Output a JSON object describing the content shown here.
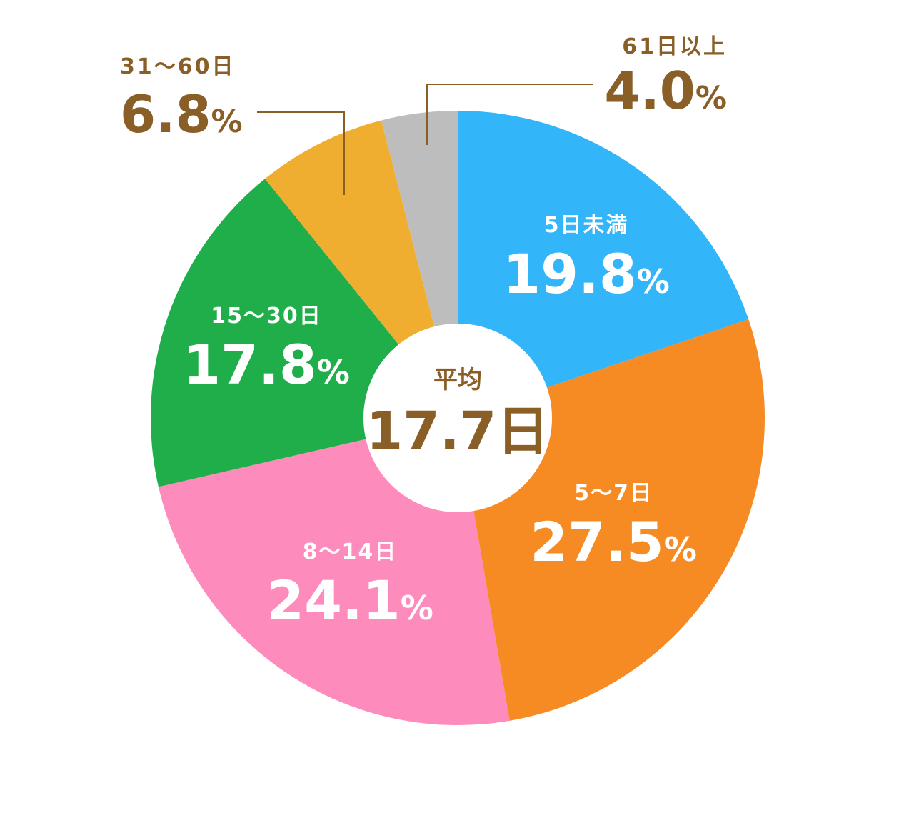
{
  "chart_data": {
    "type": "pie",
    "categories": [
      "5日未満",
      "5～7日",
      "8～14日",
      "15～30日",
      "31～60日",
      "61日以上"
    ],
    "values": [
      19.8,
      27.5,
      24.1,
      17.8,
      6.8,
      4.0
    ],
    "value_labels": [
      "19.8",
      "27.5",
      "24.1",
      "17.8",
      "6.8",
      "4.0"
    ],
    "unit": "%",
    "colors": [
      "#33b5f9",
      "#f68b23",
      "#fd8bbc",
      "#1fae4a",
      "#efae2f",
      "#bdbdbd"
    ],
    "label_placement": [
      "inside",
      "inside",
      "inside",
      "inside",
      "outside",
      "outside"
    ],
    "start": "12 o'clock",
    "direction": "clockwise",
    "donut_hole": true
  },
  "center": {
    "label": "平均",
    "value": "17.7日"
  },
  "colors": {
    "accent": "#8a5f27",
    "inside_text": "#ffffff",
    "background": "#ffffff"
  }
}
